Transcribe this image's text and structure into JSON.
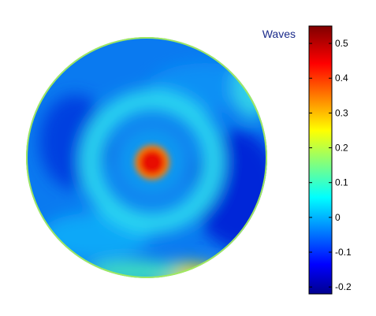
{
  "chart_data": {
    "type": "heatmap",
    "title": "",
    "xlabel": "",
    "ylabel": "",
    "colorbar": {
      "label": "Waves",
      "range": [
        -0.22,
        0.55
      ],
      "ticks": [
        -0.2,
        -0.1,
        0,
        0.1,
        0.2,
        0.3,
        0.4,
        0.5
      ],
      "tick_labels": [
        "-0.2",
        "-0.1",
        "0",
        "0.1",
        "0.2",
        "0.3",
        "0.4",
        "0.5"
      ],
      "colormap": "jet",
      "position": "right"
    },
    "domain": "circular aperture",
    "features": [
      {
        "kind": "peak",
        "location": "center",
        "value": 0.5
      },
      {
        "kind": "ring",
        "location": "around center",
        "value": 0.08
      },
      {
        "kind": "trough",
        "location": "right and left",
        "value": -0.15
      },
      {
        "kind": "rim",
        "location": "bottom edge",
        "value": 0.3
      }
    ],
    "grid": false
  }
}
